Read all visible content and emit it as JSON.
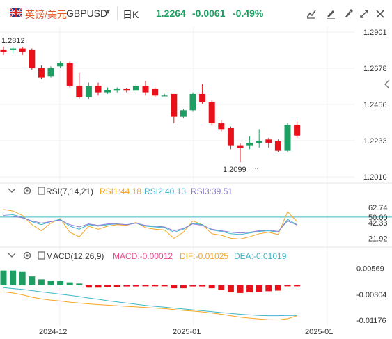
{
  "header": {
    "pair_name": "英镑/美元",
    "pair_code": "GBPUSD",
    "interval": "日K",
    "price": "1.2264",
    "change": "-0.0061",
    "change_pct": "-0.49%"
  },
  "toolbar": {
    "icons": [
      "draw-icon",
      "pencil-icon",
      "brush-icon",
      "fullscreen-icon",
      "close-icon"
    ]
  },
  "colors": {
    "up": "#1e9e63",
    "down": "#e8111a",
    "accent": "#e35b2c",
    "rsi1": "#f5a623",
    "rsi2": "#3fb6c9",
    "rsi3": "#8b7bd8",
    "dif": "#f5a623",
    "dea": "#3fb6c9"
  },
  "price_axis": {
    "ticks": [
      "1.2901",
      "1.2678",
      "1.2456",
      "1.2233",
      "1.2010"
    ],
    "high_label": "1.2812",
    "low_label": "1.2099"
  },
  "rsi": {
    "title": "RSI(7,14,21)",
    "rsi1": "RSI1:44.18",
    "rsi2": "RSI2:40.13",
    "rsi3": "RSI3:39.51",
    "ticks": [
      "62.74",
      "50.00",
      "42.33",
      "21.92"
    ]
  },
  "macd": {
    "title": "MACD(12,26,9)",
    "macd": "MACD:-0.00012",
    "dif": "DIF:-0.01025",
    "dea": "DEA:-0.01019",
    "ticks": [
      "0.00569",
      "-0.00304",
      "-0.01176"
    ]
  },
  "dates": [
    "2024-12",
    "2025-01",
    "2025-01"
  ],
  "chart_data": {
    "type": "candlestick",
    "price_ylim": [
      1.201,
      1.2901
    ],
    "candles": [
      {
        "o": 1.279,
        "h": 1.2812,
        "l": 1.276,
        "c": 1.278
      },
      {
        "o": 1.279,
        "h": 1.2812,
        "l": 1.277,
        "c": 1.28
      },
      {
        "o": 1.28,
        "h": 1.281,
        "l": 1.276,
        "c": 1.278
      },
      {
        "o": 1.279,
        "h": 1.28,
        "l": 1.267,
        "c": 1.268
      },
      {
        "o": 1.268,
        "h": 1.2695,
        "l": 1.261,
        "c": 1.262
      },
      {
        "o": 1.263,
        "h": 1.269,
        "l": 1.262,
        "c": 1.268
      },
      {
        "o": 1.269,
        "h": 1.272,
        "l": 1.268,
        "c": 1.271
      },
      {
        "o": 1.271,
        "h": 1.272,
        "l": 1.256,
        "c": 1.257
      },
      {
        "o": 1.257,
        "h": 1.265,
        "l": 1.249,
        "c": 1.25
      },
      {
        "o": 1.25,
        "h": 1.259,
        "l": 1.249,
        "c": 1.257
      },
      {
        "o": 1.257,
        "h": 1.259,
        "l": 1.251,
        "c": 1.253
      },
      {
        "o": 1.253,
        "h": 1.256,
        "l": 1.252,
        "c": 1.2545
      },
      {
        "o": 1.254,
        "h": 1.256,
        "l": 1.253,
        "c": 1.255
      },
      {
        "o": 1.255,
        "h": 1.2555,
        "l": 1.253,
        "c": 1.254
      },
      {
        "o": 1.254,
        "h": 1.258,
        "l": 1.252,
        "c": 1.257
      },
      {
        "o": 1.257,
        "h": 1.26,
        "l": 1.251,
        "c": 1.253
      },
      {
        "o": 1.255,
        "h": 1.256,
        "l": 1.25,
        "c": 1.251
      },
      {
        "o": 1.251,
        "h": 1.252,
        "l": 1.2505,
        "c": 1.251
      },
      {
        "o": 1.252,
        "h": 1.252,
        "l": 1.234,
        "c": 1.238
      },
      {
        "o": 1.238,
        "h": 1.243,
        "l": 1.237,
        "c": 1.242
      },
      {
        "o": 1.242,
        "h": 1.253,
        "l": 1.241,
        "c": 1.252
      },
      {
        "o": 1.252,
        "h": 1.258,
        "l": 1.246,
        "c": 1.247
      },
      {
        "o": 1.247,
        "h": 1.248,
        "l": 1.233,
        "c": 1.234
      },
      {
        "o": 1.234,
        "h": 1.236,
        "l": 1.229,
        "c": 1.23
      },
      {
        "o": 1.231,
        "h": 1.232,
        "l": 1.218,
        "c": 1.22
      },
      {
        "o": 1.22,
        "h": 1.2215,
        "l": 1.2099,
        "c": 1.219
      },
      {
        "o": 1.22,
        "h": 1.226,
        "l": 1.218,
        "c": 1.222
      },
      {
        "o": 1.222,
        "h": 1.23,
        "l": 1.219,
        "c": 1.223
      },
      {
        "o": 1.224,
        "h": 1.225,
        "l": 1.219,
        "c": 1.222
      },
      {
        "o": 1.223,
        "h": 1.224,
        "l": 1.216,
        "c": 1.217
      },
      {
        "o": 1.217,
        "h": 1.234,
        "l": 1.216,
        "c": 1.233
      },
      {
        "o": 1.233,
        "h": 1.235,
        "l": 1.225,
        "c": 1.2264
      }
    ],
    "rsi_ylim": [
      15,
      70
    ],
    "rsi1": [
      60,
      58,
      52,
      40,
      32,
      42,
      48,
      30,
      24,
      38,
      34,
      38,
      40,
      39,
      43,
      36,
      34,
      33,
      22,
      30,
      45,
      40,
      28,
      26,
      22,
      21,
      24,
      28,
      30,
      27,
      57,
      44
    ],
    "rsi2": [
      54,
      53,
      50,
      44,
      40,
      44,
      47,
      38,
      34,
      40,
      38,
      40,
      41,
      40,
      42,
      38,
      37,
      36,
      30,
      34,
      42,
      40,
      33,
      31,
      28,
      27,
      29,
      31,
      32,
      30,
      47,
      40
    ],
    "rsi3": [
      52,
      51,
      49,
      45,
      42,
      44,
      46,
      40,
      37,
      41,
      39,
      41,
      41,
      40,
      42,
      39,
      38,
      37,
      32,
      35,
      41,
      39,
      34,
      32,
      30,
      29,
      30,
      32,
      33,
      31,
      45,
      39.5
    ],
    "macd_ylim": [
      -0.0125,
      0.0075
    ],
    "macd_hist": [
      0.005,
      0.005,
      0.0045,
      0.003,
      0.002,
      0.0016,
      0.0014,
      0.001,
      0.0006,
      -0.0008,
      -0.0008,
      -0.0006,
      -0.0005,
      -0.0004,
      -0.0004,
      -0.0003,
      -0.0002,
      -0.0003,
      -0.001,
      -0.001,
      -0.0004,
      -0.0004,
      -0.001,
      -0.0015,
      -0.0024,
      -0.0026,
      -0.0024,
      -0.0022,
      -0.002,
      -0.0018,
      -0.0003,
      -0.0001
    ],
    "dif": [
      -0.0022,
      -0.0026,
      -0.0032,
      -0.004,
      -0.0046,
      -0.005,
      -0.0053,
      -0.0057,
      -0.006,
      -0.0063,
      -0.0065,
      -0.0067,
      -0.0069,
      -0.0071,
      -0.0073,
      -0.0075,
      -0.0077,
      -0.0079,
      -0.0082,
      -0.0085,
      -0.0087,
      -0.009,
      -0.0094,
      -0.0098,
      -0.0103,
      -0.0108,
      -0.0111,
      -0.0114,
      -0.0116,
      -0.0117,
      -0.0113,
      -0.0103
    ],
    "dea": [
      -0.0008,
      -0.0011,
      -0.0014,
      -0.0018,
      -0.0022,
      -0.0026,
      -0.003,
      -0.0034,
      -0.0038,
      -0.0043,
      -0.0047,
      -0.0052,
      -0.0056,
      -0.006,
      -0.0064,
      -0.0068,
      -0.0071,
      -0.0074,
      -0.0077,
      -0.008,
      -0.0083,
      -0.0086,
      -0.0089,
      -0.0092,
      -0.0095,
      -0.0098,
      -0.01,
      -0.0102,
      -0.0103,
      -0.0103,
      -0.0102,
      -0.0102
    ]
  }
}
